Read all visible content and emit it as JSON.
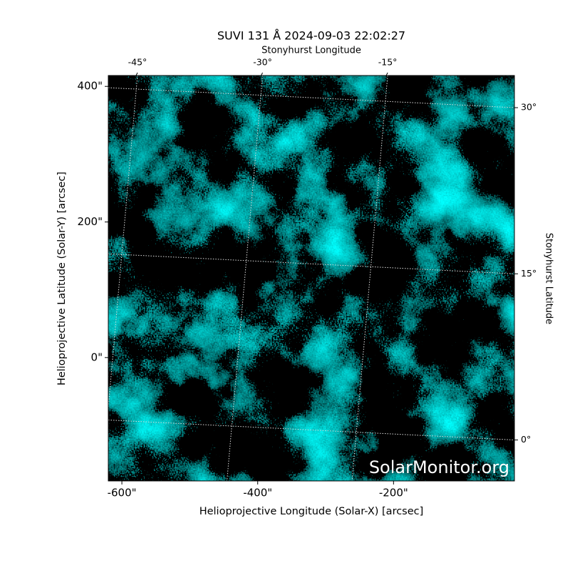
{
  "chart_data": {
    "type": "image",
    "title": "SUVI 131 Å 2024-09-03 22:02:27",
    "x_label": "Helioprojective Longitude (Solar-X) [arcsec]",
    "y_label": "Helioprojective Latitude (Solar-Y) [arcsec]",
    "x2_label": "Stonyhurst Longitude",
    "y2_label": "Stonyhurst Latitude",
    "watermark": "SolarMonitor.org",
    "xlim": [
      -620,
      -22
    ],
    "xticks": [
      {
        "value": -600,
        "label": "-600\""
      },
      {
        "value": -400,
        "label": "-400\""
      },
      {
        "value": -200,
        "label": "-200\""
      }
    ],
    "ylim": [
      -182,
      416
    ],
    "yticks": [
      {
        "value": 0,
        "label": "0\""
      },
      {
        "value": 200,
        "label": "200\""
      },
      {
        "value": 400,
        "label": "400\""
      }
    ],
    "x2lim": [
      -48.5,
      0.2
    ],
    "x2ticks": [
      {
        "value": -45,
        "label": "-45°"
      },
      {
        "value": -30,
        "label": "-30°"
      },
      {
        "value": -15,
        "label": "-15°"
      }
    ],
    "y2lim": [
      -3.7,
      32.9
    ],
    "y2ticks": [
      {
        "value": 0,
        "label": "0°"
      },
      {
        "value": 15,
        "label": "15°"
      },
      {
        "value": 30,
        "label": "30°"
      }
    ],
    "colormap": [
      "#000000",
      "#00bfbf",
      "#e0ffff"
    ]
  }
}
